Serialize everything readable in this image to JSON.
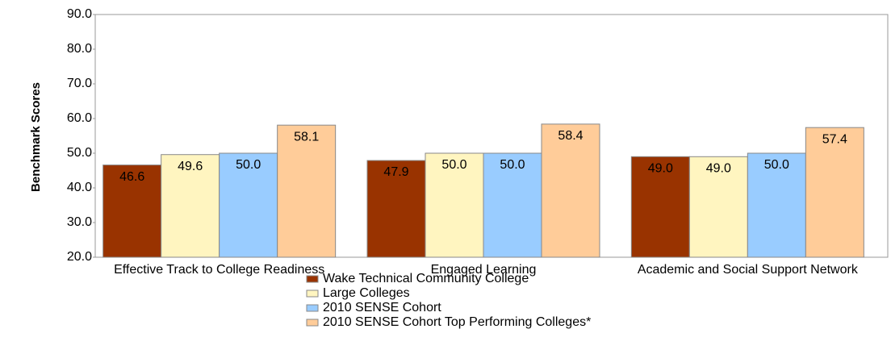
{
  "chart_data": {
    "type": "bar",
    "y_label": "Benchmark Scores",
    "categories": [
      "Effective Track to College Readiness",
      "Engaged Learning",
      "Academic and Social Support Network"
    ],
    "series": [
      {
        "name": "Wake Technical Community College",
        "color": "#993300",
        "values": [
          46.6,
          47.9,
          49.0
        ],
        "value_labels": [
          "46.6",
          "47.9",
          "49.0"
        ]
      },
      {
        "name": "Large Colleges",
        "color": "#fff5c0",
        "values": [
          49.6,
          50.0,
          49.0
        ],
        "value_labels": [
          "49.6",
          "50.0",
          "49.0"
        ]
      },
      {
        "name": "2010 SENSE Cohort",
        "color": "#99ccff",
        "values": [
          50.0,
          50.0,
          50.0
        ],
        "value_labels": [
          "50.0",
          "50.0",
          "50.0"
        ]
      },
      {
        "name": "2010 SENSE Cohort Top Performing Colleges*",
        "color": "#ffcc99",
        "values": [
          58.1,
          58.4,
          57.4
        ],
        "value_labels": [
          "58.1",
          "58.4",
          "57.4"
        ]
      }
    ],
    "ylim": [
      20,
      90
    ],
    "yticks": [
      {
        "value": 20,
        "label": "20.0"
      },
      {
        "value": 30,
        "label": "30.0"
      },
      {
        "value": 40,
        "label": "40.0"
      },
      {
        "value": 50,
        "label": "50.0"
      },
      {
        "value": 60,
        "label": "60.0"
      },
      {
        "value": 70,
        "label": "70.0"
      },
      {
        "value": 80,
        "label": "80.0"
      },
      {
        "value": 90,
        "label": "90.0"
      }
    ],
    "grid": false,
    "legend": "bottom"
  }
}
